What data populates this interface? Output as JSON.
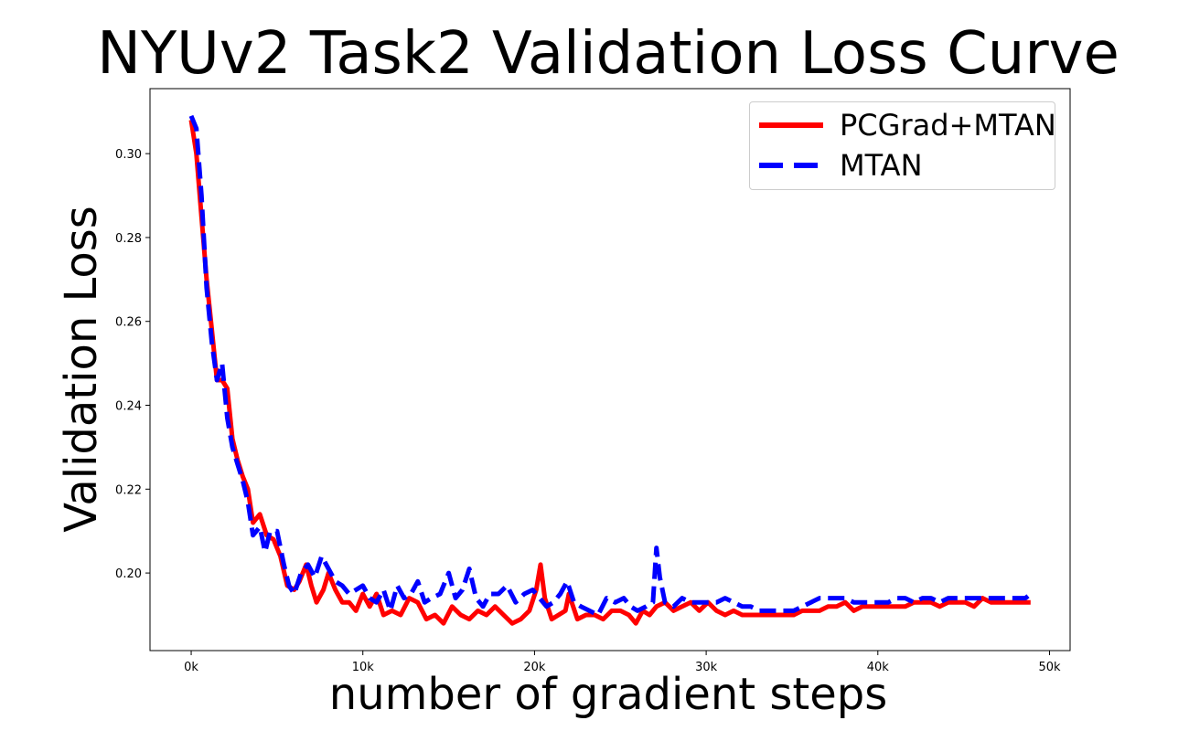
{
  "chart_data": {
    "type": "line",
    "title": "NYUv2 Task2 Validation Loss Curve",
    "xlabel": "number of gradient steps",
    "ylabel": "Validation Loss",
    "xlim": [
      -2400,
      51200
    ],
    "ylim": [
      0.1815,
      0.3155
    ],
    "xticks": [
      0,
      10000,
      20000,
      30000,
      40000,
      50000
    ],
    "xtick_labels": [
      "0k",
      "10k",
      "20k",
      "30k",
      "40k",
      "50k"
    ],
    "yticks": [
      0.2,
      0.22,
      0.24,
      0.26,
      0.28,
      0.3
    ],
    "ytick_labels": [
      "0.20",
      "0.22",
      "0.24",
      "0.26",
      "0.28",
      "0.30"
    ],
    "legend_position": "top-right",
    "series": [
      {
        "name": "PCGrad+MTAN",
        "color": "#ff0000",
        "style": "solid",
        "points": [
          [
            0,
            0.308
          ],
          [
            300,
            0.3
          ],
          [
            600,
            0.285
          ],
          [
            900,
            0.27
          ],
          [
            1200,
            0.258
          ],
          [
            1500,
            0.246
          ],
          [
            1800,
            0.246
          ],
          [
            2100,
            0.244
          ],
          [
            2400,
            0.232
          ],
          [
            2700,
            0.227
          ],
          [
            3000,
            0.223
          ],
          [
            3300,
            0.22
          ],
          [
            3600,
            0.212
          ],
          [
            4000,
            0.214
          ],
          [
            4400,
            0.209
          ],
          [
            4800,
            0.208
          ],
          [
            5200,
            0.204
          ],
          [
            5600,
            0.197
          ],
          [
            6000,
            0.196
          ],
          [
            6300,
            0.198
          ],
          [
            6700,
            0.202
          ],
          [
            7000,
            0.197
          ],
          [
            7300,
            0.193
          ],
          [
            7700,
            0.196
          ],
          [
            8000,
            0.2
          ],
          [
            8400,
            0.196
          ],
          [
            8800,
            0.193
          ],
          [
            9200,
            0.193
          ],
          [
            9600,
            0.191
          ],
          [
            10000,
            0.195
          ],
          [
            10400,
            0.192
          ],
          [
            10800,
            0.195
          ],
          [
            11200,
            0.19
          ],
          [
            11700,
            0.191
          ],
          [
            12200,
            0.19
          ],
          [
            12700,
            0.194
          ],
          [
            13200,
            0.193
          ],
          [
            13700,
            0.189
          ],
          [
            14200,
            0.19
          ],
          [
            14700,
            0.188
          ],
          [
            15200,
            0.192
          ],
          [
            15700,
            0.19
          ],
          [
            16200,
            0.189
          ],
          [
            16700,
            0.191
          ],
          [
            17200,
            0.19
          ],
          [
            17700,
            0.192
          ],
          [
            18200,
            0.19
          ],
          [
            18700,
            0.188
          ],
          [
            19200,
            0.189
          ],
          [
            19700,
            0.191
          ],
          [
            20100,
            0.196
          ],
          [
            20350,
            0.202
          ],
          [
            20600,
            0.194
          ],
          [
            21000,
            0.189
          ],
          [
            21400,
            0.19
          ],
          [
            21800,
            0.191
          ],
          [
            22000,
            0.195
          ],
          [
            22500,
            0.189
          ],
          [
            23000,
            0.19
          ],
          [
            23500,
            0.19
          ],
          [
            24000,
            0.189
          ],
          [
            24500,
            0.191
          ],
          [
            25000,
            0.191
          ],
          [
            25500,
            0.19
          ],
          [
            25900,
            0.188
          ],
          [
            26300,
            0.191
          ],
          [
            26700,
            0.19
          ],
          [
            27100,
            0.192
          ],
          [
            27600,
            0.193
          ],
          [
            28100,
            0.191
          ],
          [
            28600,
            0.192
          ],
          [
            29100,
            0.193
          ],
          [
            29600,
            0.191
          ],
          [
            30100,
            0.193
          ],
          [
            30600,
            0.191
          ],
          [
            31100,
            0.19
          ],
          [
            31600,
            0.191
          ],
          [
            32100,
            0.19
          ],
          [
            32600,
            0.19
          ],
          [
            33100,
            0.19
          ],
          [
            33600,
            0.19
          ],
          [
            34100,
            0.19
          ],
          [
            34600,
            0.19
          ],
          [
            35100,
            0.19
          ],
          [
            35600,
            0.191
          ],
          [
            36100,
            0.191
          ],
          [
            36600,
            0.191
          ],
          [
            37100,
            0.192
          ],
          [
            37600,
            0.192
          ],
          [
            38100,
            0.193
          ],
          [
            38600,
            0.191
          ],
          [
            39100,
            0.192
          ],
          [
            39600,
            0.192
          ],
          [
            40100,
            0.192
          ],
          [
            40600,
            0.192
          ],
          [
            41100,
            0.192
          ],
          [
            41600,
            0.192
          ],
          [
            42100,
            0.193
          ],
          [
            42600,
            0.193
          ],
          [
            43100,
            0.193
          ],
          [
            43600,
            0.192
          ],
          [
            44100,
            0.193
          ],
          [
            44600,
            0.193
          ],
          [
            45100,
            0.193
          ],
          [
            45600,
            0.192
          ],
          [
            46100,
            0.194
          ],
          [
            46600,
            0.193
          ],
          [
            47100,
            0.193
          ],
          [
            47600,
            0.193
          ],
          [
            48100,
            0.193
          ],
          [
            48600,
            0.193
          ],
          [
            48900,
            0.193
          ]
        ]
      },
      {
        "name": "MTAN",
        "color": "#0000ff",
        "style": "dashed",
        "points": [
          [
            0,
            0.309
          ],
          [
            300,
            0.306
          ],
          [
            600,
            0.29
          ],
          [
            900,
            0.268
          ],
          [
            1200,
            0.255
          ],
          [
            1500,
            0.246
          ],
          [
            1800,
            0.25
          ],
          [
            2100,
            0.237
          ],
          [
            2400,
            0.23
          ],
          [
            2700,
            0.226
          ],
          [
            3000,
            0.222
          ],
          [
            3300,
            0.217
          ],
          [
            3600,
            0.209
          ],
          [
            4000,
            0.211
          ],
          [
            4300,
            0.205
          ],
          [
            4600,
            0.21
          ],
          [
            5000,
            0.21
          ],
          [
            5400,
            0.202
          ],
          [
            5700,
            0.197
          ],
          [
            6000,
            0.195
          ],
          [
            6400,
            0.2
          ],
          [
            6800,
            0.202
          ],
          [
            7200,
            0.199
          ],
          [
            7600,
            0.204
          ],
          [
            8000,
            0.201
          ],
          [
            8400,
            0.198
          ],
          [
            8800,
            0.197
          ],
          [
            9200,
            0.195
          ],
          [
            9600,
            0.196
          ],
          [
            10000,
            0.197
          ],
          [
            10400,
            0.194
          ],
          [
            10800,
            0.193
          ],
          [
            11200,
            0.196
          ],
          [
            11600,
            0.191
          ],
          [
            12000,
            0.197
          ],
          [
            12400,
            0.194
          ],
          [
            12800,
            0.195
          ],
          [
            13200,
            0.198
          ],
          [
            13600,
            0.193
          ],
          [
            14000,
            0.194
          ],
          [
            14500,
            0.195
          ],
          [
            15000,
            0.2
          ],
          [
            15400,
            0.194
          ],
          [
            15800,
            0.196
          ],
          [
            16200,
            0.201
          ],
          [
            16600,
            0.194
          ],
          [
            17000,
            0.192
          ],
          [
            17400,
            0.195
          ],
          [
            17900,
            0.195
          ],
          [
            18400,
            0.197
          ],
          [
            18900,
            0.193
          ],
          [
            19400,
            0.195
          ],
          [
            19900,
            0.196
          ],
          [
            20300,
            0.194
          ],
          [
            20700,
            0.192
          ],
          [
            21100,
            0.193
          ],
          [
            21500,
            0.195
          ],
          [
            21900,
            0.198
          ],
          [
            22300,
            0.193
          ],
          [
            22700,
            0.192
          ],
          [
            23200,
            0.191
          ],
          [
            23700,
            0.19
          ],
          [
            24200,
            0.194
          ],
          [
            24700,
            0.193
          ],
          [
            25200,
            0.194
          ],
          [
            25600,
            0.192
          ],
          [
            26000,
            0.191
          ],
          [
            26500,
            0.192
          ],
          [
            26900,
            0.193
          ],
          [
            27100,
            0.206
          ],
          [
            27300,
            0.199
          ],
          [
            27600,
            0.193
          ],
          [
            28100,
            0.192
          ],
          [
            28600,
            0.194
          ],
          [
            29100,
            0.193
          ],
          [
            29600,
            0.193
          ],
          [
            30100,
            0.193
          ],
          [
            30600,
            0.193
          ],
          [
            31100,
            0.194
          ],
          [
            31600,
            0.193
          ],
          [
            32100,
            0.192
          ],
          [
            32600,
            0.192
          ],
          [
            33100,
            0.191
          ],
          [
            33600,
            0.191
          ],
          [
            34100,
            0.191
          ],
          [
            34600,
            0.191
          ],
          [
            35100,
            0.191
          ],
          [
            35600,
            0.192
          ],
          [
            36100,
            0.193
          ],
          [
            36600,
            0.194
          ],
          [
            37100,
            0.194
          ],
          [
            37600,
            0.194
          ],
          [
            38100,
            0.194
          ],
          [
            38600,
            0.193
          ],
          [
            39100,
            0.193
          ],
          [
            39600,
            0.193
          ],
          [
            40100,
            0.193
          ],
          [
            40600,
            0.193
          ],
          [
            41100,
            0.194
          ],
          [
            41600,
            0.194
          ],
          [
            42100,
            0.193
          ],
          [
            42600,
            0.194
          ],
          [
            43100,
            0.194
          ],
          [
            43600,
            0.193
          ],
          [
            44100,
            0.194
          ],
          [
            44600,
            0.194
          ],
          [
            45100,
            0.194
          ],
          [
            45600,
            0.194
          ],
          [
            46100,
            0.194
          ],
          [
            46600,
            0.194
          ],
          [
            47100,
            0.194
          ],
          [
            47600,
            0.194
          ],
          [
            48100,
            0.194
          ],
          [
            48600,
            0.194
          ],
          [
            48900,
            0.195
          ]
        ]
      }
    ]
  }
}
